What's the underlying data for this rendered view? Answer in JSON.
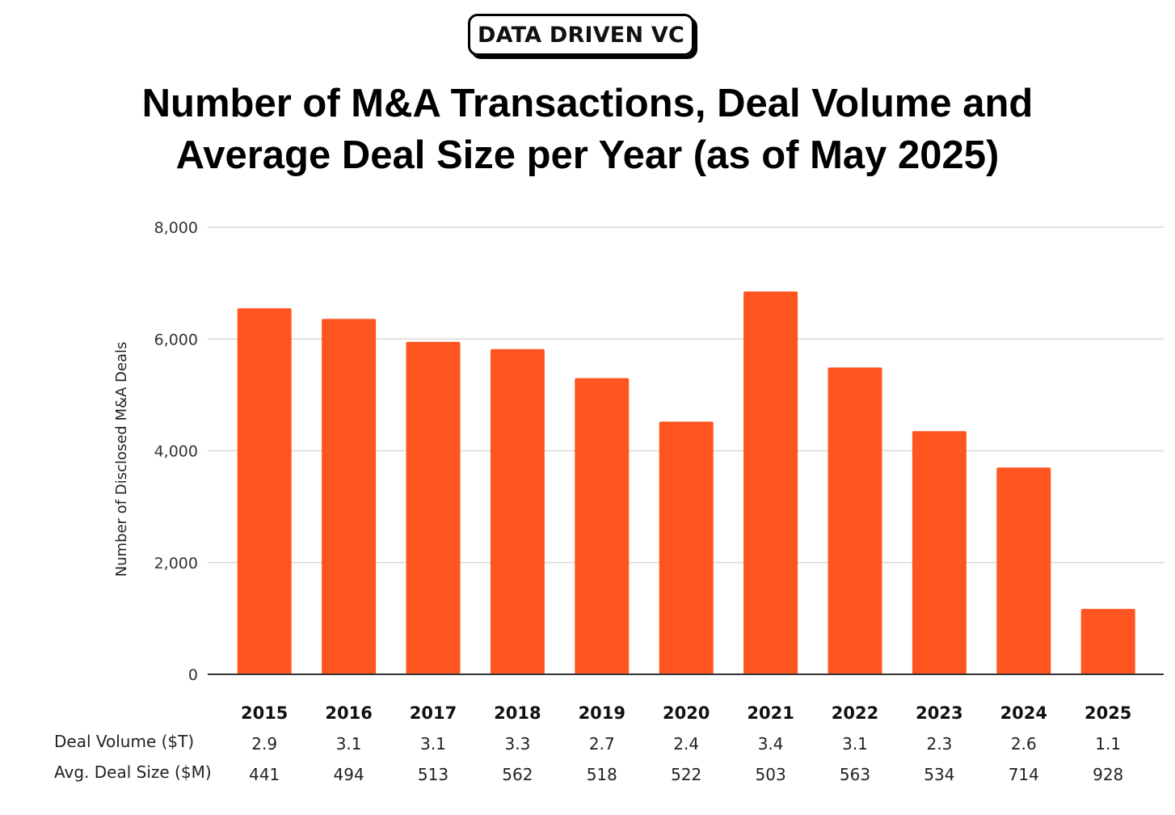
{
  "brand": {
    "logo_text": "DATA DRIVEN VC"
  },
  "title_line1": "Number of M&A Transactions, Deal Volume and",
  "title_line2": "Average Deal Size per Year (as of May 2025)",
  "colors": {
    "bar": "#FF5520",
    "grid": "#d9d9d9",
    "axis": "#333333"
  },
  "table": {
    "row1_label": "Deal Volume ($T)",
    "row2_label": "Avg. Deal Size ($M)",
    "deal_volume": [
      "2.9",
      "3.1",
      "3.1",
      "3.3",
      "2.7",
      "2.4",
      "3.4",
      "3.1",
      "2.3",
      "2.6",
      "1.1"
    ],
    "avg_deal_size": [
      "441",
      "494",
      "513",
      "562",
      "518",
      "522",
      "503",
      "563",
      "534",
      "714",
      "928"
    ]
  },
  "chart_data": {
    "type": "bar",
    "title": "Number of M&A Transactions, Deal Volume and Average Deal Size per Year (as of May 2025)",
    "categories": [
      "2015",
      "2016",
      "2017",
      "2018",
      "2019",
      "2020",
      "2021",
      "2022",
      "2023",
      "2024",
      "2025"
    ],
    "values": [
      6550,
      6360,
      5950,
      5820,
      5300,
      4520,
      6850,
      5490,
      4350,
      3700,
      1170
    ],
    "ylabel": "Number of Disclosed M&A Deals",
    "xlabel": "",
    "ylim": [
      0,
      8000
    ],
    "yticks": [
      0,
      2000,
      4000,
      6000,
      8000
    ],
    "ytick_labels": [
      "0",
      "2,000",
      "4,000",
      "6,000",
      "8,000"
    ],
    "grid": true,
    "legend": "none"
  }
}
